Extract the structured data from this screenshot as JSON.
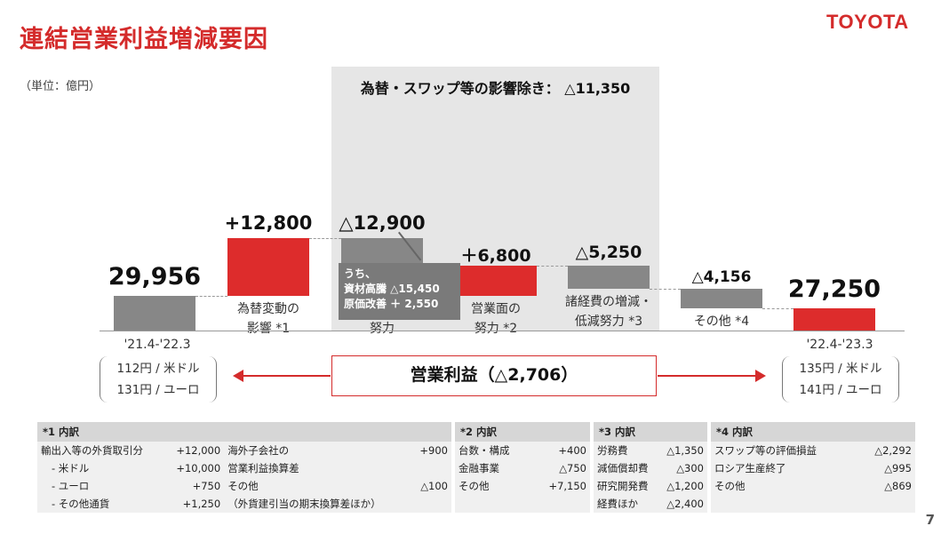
{
  "title": "連結営業利益増減要因",
  "logo": "TOYOTA",
  "unit": "（単位：億円）",
  "shade_label": "為替・スワップ等の影響除き：  △11,350",
  "callout": "うち、\n資材高騰 △15,450\n原価改善 ＋  2,550",
  "operating_profit_label": "営業利益（△2,706）",
  "left_period": {
    "label": "'21.4-'22.3",
    "rates": [
      "112円 / 米ドル",
      "131円 / ユーロ"
    ]
  },
  "right_period": {
    "label": "'22.4-'23.3",
    "rates": [
      "135円 / 米ドル",
      "141円 / ユーロ"
    ]
  },
  "page_number": "7",
  "chart_data": {
    "type": "waterfall",
    "title": "連結営業利益増減要因",
    "ylabel": "（単位：億円）",
    "steps": [
      {
        "category": "",
        "value": 29956,
        "kind": "total",
        "label": "29,956"
      },
      {
        "category": "為替変動の\n影響 *1",
        "value": 12800,
        "kind": "delta",
        "label": "+12,800"
      },
      {
        "category": "原価改善の\n努力",
        "value": -12900,
        "kind": "delta",
        "label": "△12,900"
      },
      {
        "category": "営業面の\n努力 *2",
        "value": 6800,
        "kind": "delta",
        "label": "＋6,800"
      },
      {
        "category": "諸経費の増減・\n低減努力 *3",
        "value": -5250,
        "kind": "delta",
        "label": "△5,250"
      },
      {
        "category": "その他 *4",
        "value": -4156,
        "kind": "delta",
        "label": "△4,156"
      },
      {
        "category": "",
        "value": 27250,
        "kind": "total",
        "label": "27,250"
      }
    ],
    "colors": {
      "negative": "#878787",
      "positive": "#dd2c2c",
      "start_total": "#878787",
      "end_total": "#dd2c2c"
    }
  },
  "notes": {
    "n1": {
      "header": "*1 内訳",
      "left": [
        {
          "label": "輸出入等の外貨取引分",
          "value": "+12,000"
        },
        {
          "label": "- 米ドル",
          "value": "+10,000"
        },
        {
          "label": "- ユーロ",
          "value": "+750"
        },
        {
          "label": "- その他通貨",
          "value": "+1,250"
        }
      ],
      "right": [
        {
          "label": "海外子会社の",
          "value": "+900"
        },
        {
          "label": "営業利益換算差",
          "value": ""
        },
        {
          "label": "その他",
          "value": "△100"
        },
        {
          "label": "（外貨建引当の期末換算差ほか）",
          "value": ""
        }
      ]
    },
    "n2": {
      "header": "*2 内訳",
      "rows": [
        {
          "label": "台数・構成",
          "value": "+400"
        },
        {
          "label": "金融事業",
          "value": "△750"
        },
        {
          "label": "その他",
          "value": "+7,150"
        },
        {
          "label": "",
          "value": ""
        }
      ]
    },
    "n3": {
      "header": "*3 内訳",
      "rows": [
        {
          "label": "労務費",
          "value": "△1,350"
        },
        {
          "label": "減価償却費",
          "value": "△300"
        },
        {
          "label": "研究開発費",
          "value": "△1,200"
        },
        {
          "label": "経費ほか",
          "value": "△2,400"
        }
      ]
    },
    "n4": {
      "header": "*4 内訳",
      "rows": [
        {
          "label": "スワップ等の評価損益",
          "value": "△2,292"
        },
        {
          "label": "ロシア生産終了",
          "value": "△995"
        },
        {
          "label": "その他",
          "value": "△869"
        },
        {
          "label": "",
          "value": ""
        }
      ]
    }
  }
}
